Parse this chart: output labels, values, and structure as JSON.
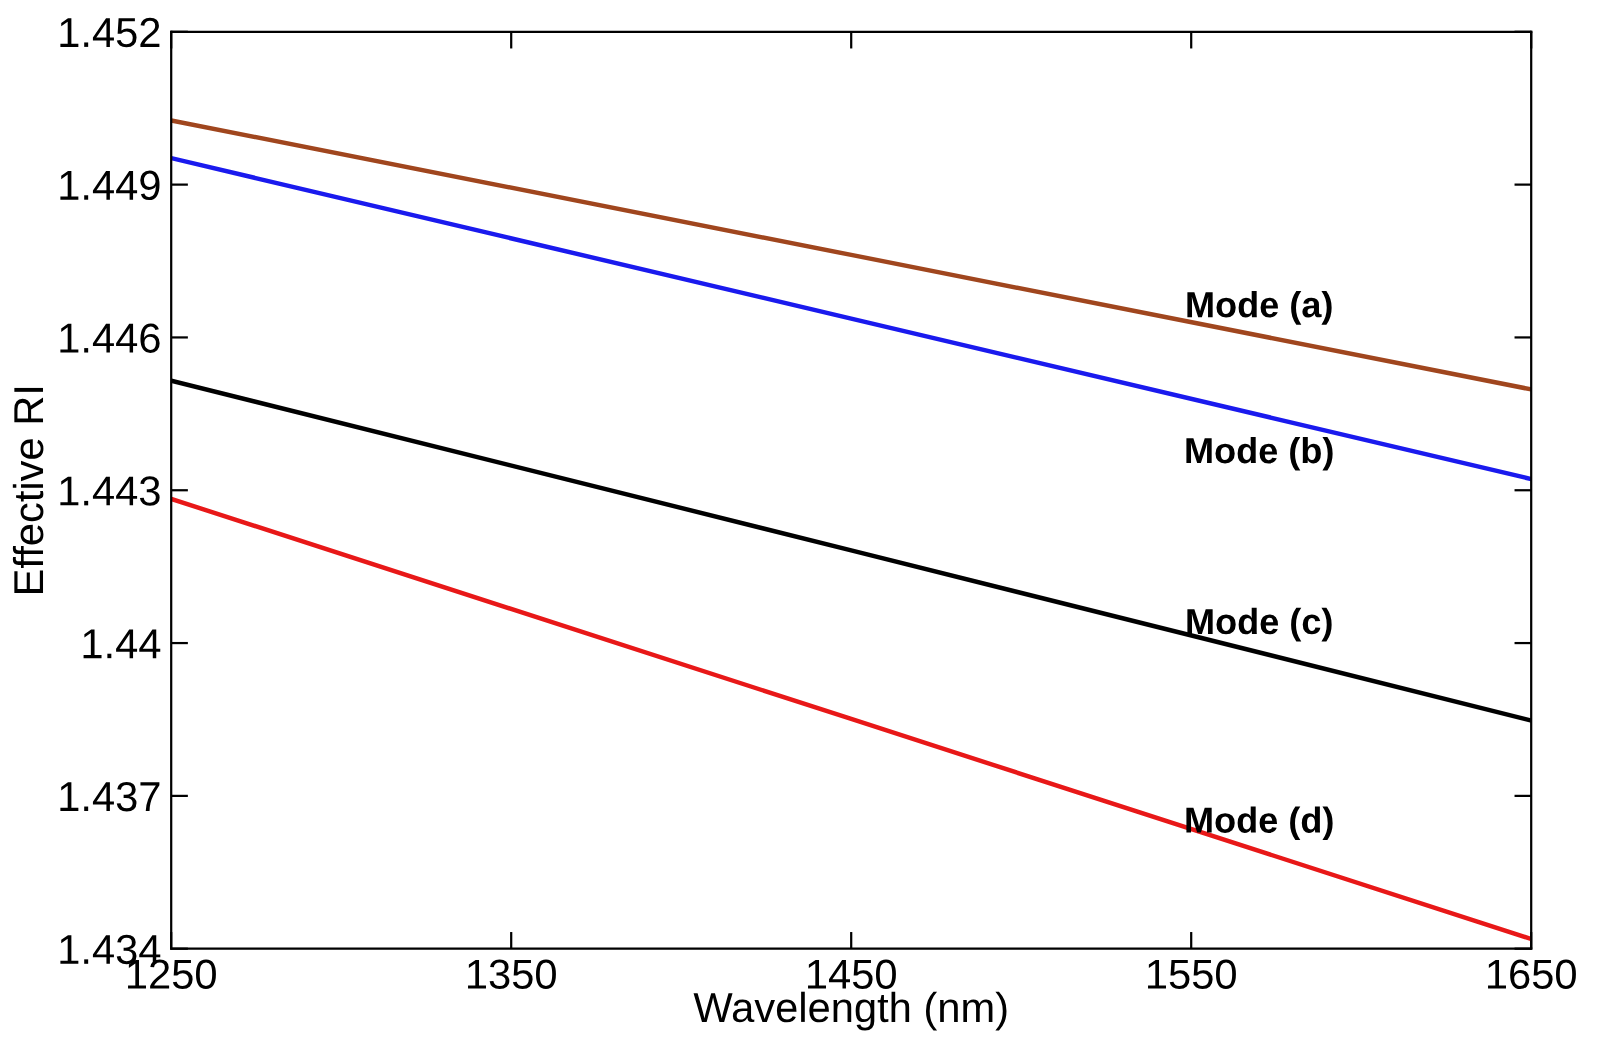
{
  "chart_data": {
    "type": "line",
    "xlabel": "Wavelength (nm)",
    "ylabel": "Effective RI",
    "xlim": [
      1250,
      1650
    ],
    "ylim": [
      1.434,
      1.452
    ],
    "xticks": [
      1250,
      1350,
      1450,
      1550,
      1650
    ],
    "yticks": [
      1.434,
      1.437,
      1.44,
      1.443,
      1.446,
      1.449,
      1.452
    ],
    "grid": false,
    "legend": false,
    "marker": "none",
    "line_style": "solid",
    "x": [
      1250,
      1450,
      1650
    ],
    "series": [
      {
        "name": "Mode (a)",
        "color": "#a0461e",
        "values": [
          1.45026,
          1.44762,
          1.44498
        ]
      },
      {
        "name": "Mode (b)",
        "color": "#1a1aee",
        "values": [
          1.44952,
          1.44637,
          1.44322
        ]
      },
      {
        "name": "Mode (c)",
        "color": "#000000",
        "values": [
          1.44515,
          1.44182,
          1.43848
        ]
      },
      {
        "name": "Mode (d)",
        "color": "#e81818",
        "values": [
          1.44283,
          1.43851,
          1.43419
        ]
      }
    ]
  }
}
